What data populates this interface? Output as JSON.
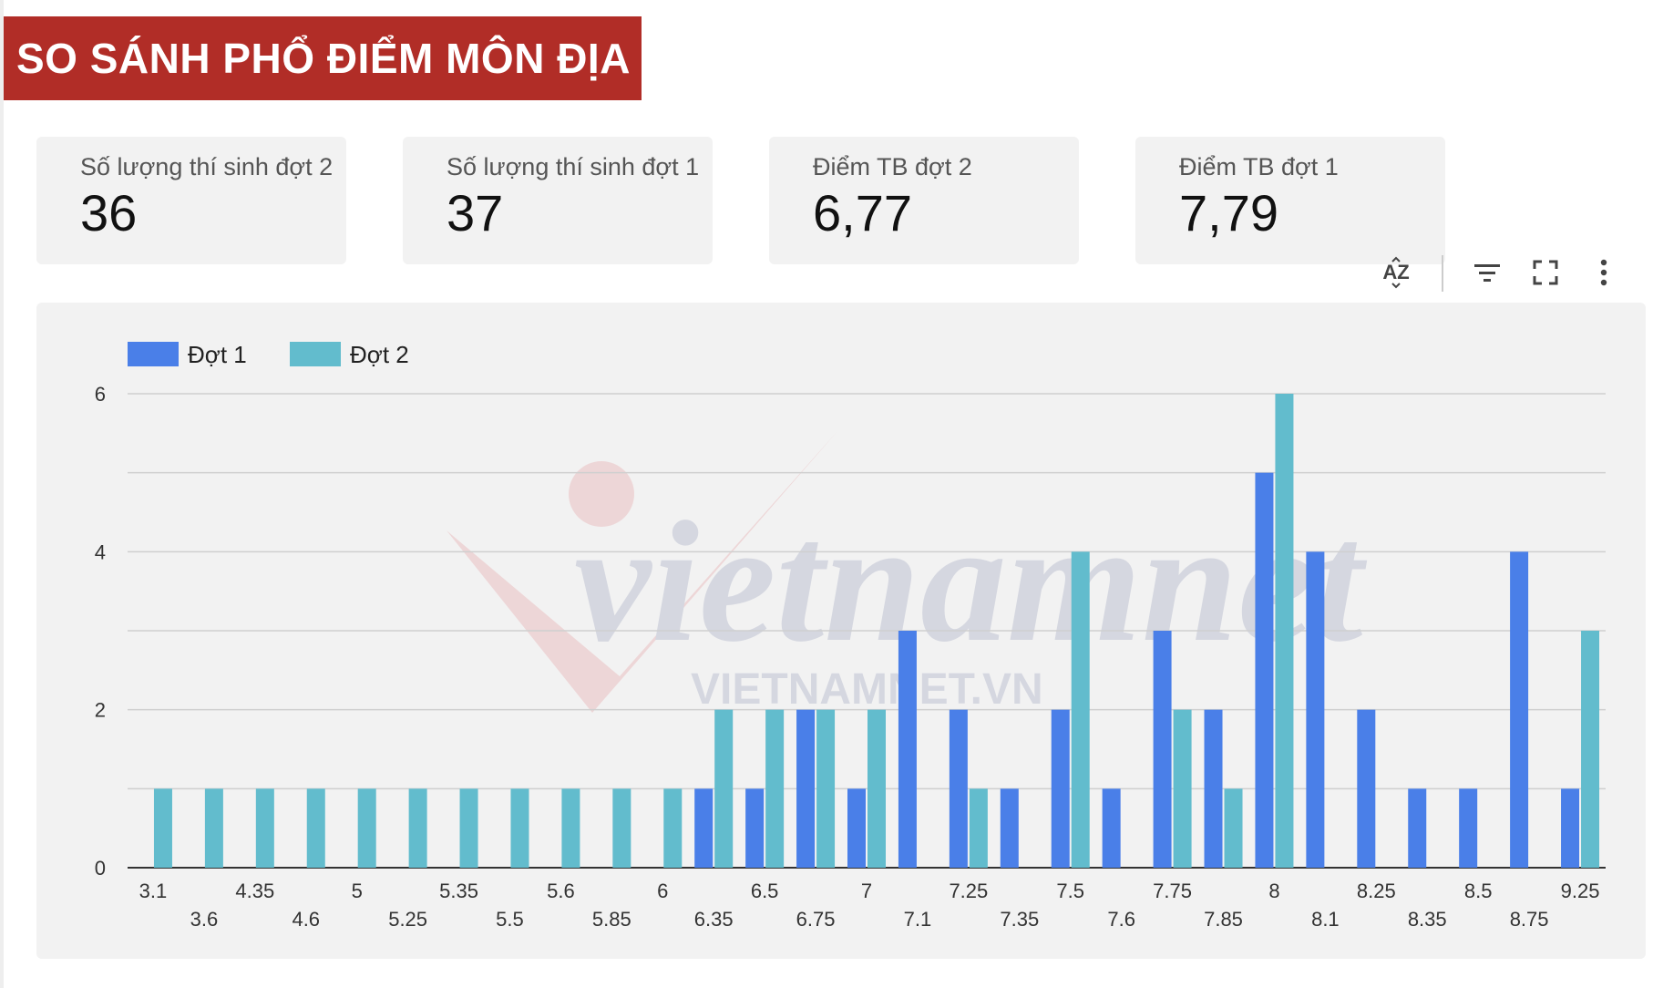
{
  "title": "SO SÁNH PHỔ ĐIỂM MÔN ĐỊA",
  "kpis": [
    {
      "label": "Số lượng thí sinh đợt 2",
      "value": "36"
    },
    {
      "label": "Số lượng thí sinh đợt 1",
      "value": "37"
    },
    {
      "label": "Điểm TB đợt 2",
      "value": "6,77"
    },
    {
      "label": "Điểm TB đợt 1",
      "value": "7,79"
    }
  ],
  "toolbar": {
    "sort_label": "AZ",
    "icons": [
      "sort-az-icon",
      "filter-icon",
      "fullscreen-icon",
      "more-vert-icon"
    ]
  },
  "watermark": {
    "logo_text": "vietnamnet",
    "url_text": "VIETNAMNET.VN"
  },
  "colors": {
    "dot1": "#4a7fe8",
    "dot2": "#62bccd",
    "banner": "#b12d27",
    "panel": "#f2f2f2"
  },
  "chart_data": {
    "type": "bar",
    "categories": [
      "3.1",
      "3.6",
      "4.35",
      "4.6",
      "5",
      "5.25",
      "5.35",
      "5.5",
      "5.6",
      "5.85",
      "6",
      "6.35",
      "6.5",
      "6.75",
      "7",
      "7.1",
      "7.25",
      "7.35",
      "7.5",
      "7.6",
      "7.75",
      "7.85",
      "8",
      "8.1",
      "8.25",
      "8.35",
      "8.5",
      "8.75",
      "9.25"
    ],
    "series": [
      {
        "name": "Đợt 1",
        "color": "#4a7fe8",
        "values": [
          0,
          0,
          0,
          0,
          0,
          0,
          0,
          0,
          0,
          0,
          0,
          1,
          1,
          2,
          1,
          3,
          2,
          1,
          2,
          1,
          3,
          2,
          5,
          4,
          2,
          1,
          1,
          4,
          1
        ]
      },
      {
        "name": "Đợt 2",
        "color": "#62bccd",
        "values": [
          1,
          1,
          1,
          1,
          1,
          1,
          1,
          1,
          1,
          1,
          1,
          2,
          2,
          2,
          2,
          0,
          1,
          0,
          4,
          0,
          2,
          1,
          6,
          0,
          0,
          0,
          0,
          0,
          3
        ]
      }
    ],
    "ylim": [
      0,
      6
    ],
    "yticks": [
      0,
      2,
      4,
      6
    ],
    "grid": true,
    "legend": "top-left"
  }
}
